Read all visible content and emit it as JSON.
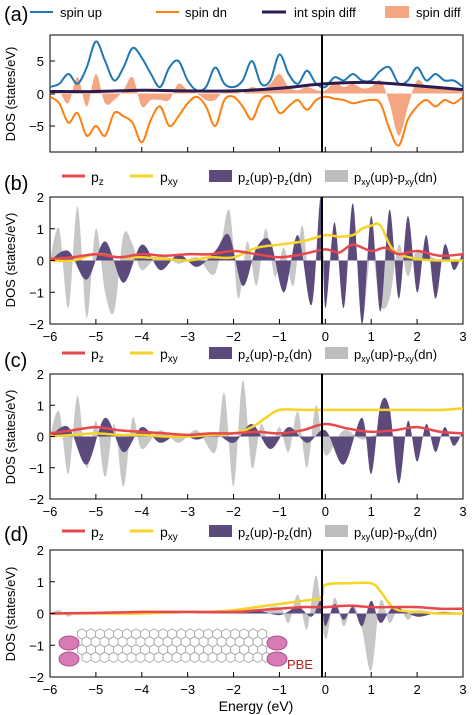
{
  "figure": {
    "xlabel": "Energy (eV)",
    "xticks": [
      "−6",
      "−5",
      "−4",
      "−3",
      "−2",
      "−1",
      "0",
      "1",
      "2",
      "3"
    ],
    "ylabel": "DOS (states/eV)"
  },
  "colors": {
    "spin_up": "#1f77b4",
    "spin_dn": "#ff7f0e",
    "int_spin_diff": "#2b1b4e",
    "spin_diff_fill": "#f4a582",
    "pz": "#e8474c",
    "pxy": "#f5d327",
    "pz_diff": "#5b4a7b",
    "pxy_diff": "#bdbdbd",
    "fermi": "#000000",
    "pbe_label": "#b22222"
  },
  "chart_data": [
    {
      "type": "area",
      "panel_label": "(a)",
      "legend": [
        "spin up",
        "spin dn",
        "int spin diff",
        "spin diff"
      ],
      "yticks": [
        "5",
        "0",
        "−5"
      ],
      "ylim": [
        -9,
        9
      ],
      "xlim": [
        -6,
        3
      ],
      "series": [
        {
          "name": "spin up",
          "x": [
            -6.0,
            -5.8,
            -5.6,
            -5.4,
            -5.2,
            -5.0,
            -4.8,
            -4.6,
            -4.4,
            -4.2,
            -4.0,
            -3.8,
            -3.6,
            -3.4,
            -3.2,
            -3.0,
            -2.8,
            -2.6,
            -2.4,
            -2.2,
            -2.0,
            -1.8,
            -1.6,
            -1.4,
            -1.2,
            -1.0,
            -0.8,
            -0.6,
            -0.4,
            -0.2,
            0.0,
            0.2,
            0.4,
            0.6,
            0.8,
            1.0,
            1.2,
            1.4,
            1.6,
            1.8,
            2.0,
            2.2,
            2.4,
            2.6,
            2.8,
            3.0
          ],
          "y": [
            1.0,
            1.5,
            3.0,
            1.5,
            4.0,
            8.0,
            5.0,
            2.0,
            4.0,
            7.0,
            5.5,
            3.0,
            1.0,
            4.0,
            5.0,
            2.0,
            0.5,
            1.0,
            4.0,
            1.5,
            1.0,
            2.0,
            5.0,
            1.5,
            2.0,
            6.0,
            3.0,
            1.5,
            3.5,
            1.5,
            1.0,
            2.5,
            2.0,
            3.0,
            2.0,
            2.0,
            3.5,
            4.0,
            1.5,
            2.0,
            4.0,
            2.0,
            3.0,
            2.0,
            2.0,
            1.0
          ]
        },
        {
          "name": "spin dn",
          "x": [
            -6.0,
            -5.8,
            -5.6,
            -5.4,
            -5.2,
            -5.0,
            -4.8,
            -4.6,
            -4.4,
            -4.2,
            -4.0,
            -3.8,
            -3.6,
            -3.4,
            -3.2,
            -3.0,
            -2.8,
            -2.6,
            -2.4,
            -2.2,
            -2.0,
            -1.8,
            -1.6,
            -1.4,
            -1.2,
            -1.0,
            -0.8,
            -0.6,
            -0.4,
            -0.2,
            0.0,
            0.2,
            0.4,
            0.6,
            0.8,
            1.0,
            1.2,
            1.4,
            1.6,
            1.8,
            2.0,
            2.2,
            2.4,
            2.6,
            2.8,
            3.0
          ],
          "y": [
            -0.5,
            -1.5,
            -4.5,
            -3.0,
            -6.5,
            -5.0,
            -6.5,
            -3.0,
            -3.5,
            -4.5,
            -7.5,
            -4.0,
            -2.0,
            -5.0,
            -3.5,
            -1.5,
            -0.5,
            -2.0,
            -5.0,
            -1.0,
            -0.5,
            -2.0,
            -4.0,
            -1.0,
            -0.5,
            -3.0,
            -2.0,
            -1.0,
            -2.5,
            -1.0,
            -0.5,
            -0.8,
            -1.0,
            -1.5,
            -1.2,
            -1.0,
            -1.5,
            -5.5,
            -8.0,
            -4.0,
            -2.0,
            -1.0,
            -2.0,
            -1.0,
            -1.5,
            -0.5
          ]
        },
        {
          "name": "int spin diff",
          "x": [
            -6.0,
            -5.0,
            -4.0,
            -3.0,
            -2.0,
            -1.0,
            0.0,
            1.0,
            2.0,
            3.0
          ],
          "y": [
            0.3,
            0.3,
            0.5,
            0.4,
            0.4,
            0.8,
            1.5,
            1.7,
            1.2,
            0.6
          ]
        },
        {
          "name": "spin diff",
          "x": [
            -6.0,
            -5.8,
            -5.6,
            -5.4,
            -5.2,
            -5.0,
            -4.8,
            -4.6,
            -4.4,
            -4.2,
            -4.0,
            -3.8,
            -3.6,
            -3.4,
            -3.2,
            -3.0,
            -2.8,
            -2.6,
            -2.4,
            -2.2,
            -2.0,
            -1.8,
            -1.6,
            -1.4,
            -1.2,
            -1.0,
            -0.8,
            -0.6,
            -0.4,
            -0.2,
            0.0,
            0.2,
            0.4,
            0.6,
            0.8,
            1.0,
            1.2,
            1.4,
            1.6,
            1.8,
            2.0,
            2.2,
            2.4,
            2.6,
            2.8,
            3.0
          ],
          "y": [
            0.5,
            0.3,
            -1.5,
            2.5,
            -2.0,
            3.0,
            -1.5,
            -1.0,
            0.5,
            2.5,
            -2.0,
            -1.0,
            -1.0,
            -1.0,
            1.5,
            0.5,
            0.0,
            -1.0,
            -1.0,
            0.5,
            0.5,
            0.0,
            1.0,
            0.5,
            1.5,
            3.0,
            1.0,
            0.5,
            1.0,
            0.5,
            0.5,
            1.7,
            1.0,
            1.5,
            0.8,
            1.0,
            2.0,
            -1.5,
            -6.5,
            -2.0,
            2.0,
            1.0,
            1.0,
            1.0,
            0.5,
            0.5
          ]
        }
      ]
    },
    {
      "type": "area",
      "panel_label": "(b)",
      "legend": [
        "p_z",
        "p_xy",
        "p_z(up)-p_z(dn)",
        "p_xy(up)-p_xy(dn)"
      ],
      "yticks": [
        "2",
        "1",
        "0",
        "−1",
        "−2"
      ],
      "ylim": [
        -2,
        2
      ],
      "xlim": [
        -6,
        3
      ],
      "series": [
        {
          "name": "pz",
          "x": [
            -6.0,
            -5.5,
            -5.0,
            -4.5,
            -4.0,
            -3.5,
            -3.0,
            -2.5,
            -2.0,
            -1.5,
            -1.0,
            -0.5,
            0.0,
            0.3,
            0.6,
            1.0,
            1.3,
            1.6,
            2.0,
            2.5,
            3.0
          ],
          "y": [
            0.05,
            0.1,
            0.2,
            0.1,
            0.2,
            0.15,
            0.2,
            0.2,
            0.3,
            0.2,
            0.1,
            0.2,
            0.35,
            0.25,
            0.5,
            0.3,
            0.4,
            0.2,
            0.3,
            0.15,
            0.2
          ]
        },
        {
          "name": "pxy",
          "x": [
            -6.0,
            -5.5,
            -5.0,
            -4.5,
            -4.0,
            -3.5,
            -3.0,
            -2.5,
            -2.0,
            -1.5,
            -1.0,
            -0.5,
            0.0,
            0.3,
            0.6,
            0.8,
            1.0,
            1.2,
            1.5,
            2.0,
            2.5,
            3.0
          ],
          "y": [
            0.0,
            0.0,
            0.2,
            0.1,
            0.1,
            0.05,
            0.0,
            0.1,
            0.1,
            0.4,
            0.5,
            0.6,
            0.8,
            0.75,
            0.8,
            1.0,
            1.1,
            1.1,
            0.3,
            0.05,
            0.0,
            0.0
          ]
        },
        {
          "name": "pz_diff",
          "x": [
            -6.0,
            -5.6,
            -5.2,
            -4.8,
            -4.4,
            -4.0,
            -3.6,
            -3.2,
            -2.8,
            -2.4,
            -2.1,
            -1.8,
            -1.5,
            -1.2,
            -0.9,
            -0.6,
            -0.3,
            -0.1,
            0.0,
            0.2,
            0.4,
            0.6,
            0.8,
            1.0,
            1.2,
            1.4,
            1.6,
            1.8,
            2.0,
            2.2,
            2.4,
            2.6,
            2.8,
            3.0
          ],
          "y": [
            0.0,
            0.3,
            -0.6,
            0.6,
            -0.7,
            0.5,
            -0.3,
            0.2,
            -0.2,
            0.3,
            0.8,
            -0.8,
            0.4,
            0.6,
            -1.0,
            0.8,
            -1.4,
            2.0,
            -1.5,
            1.2,
            -1.5,
            1.8,
            -2.0,
            1.4,
            -1.6,
            1.6,
            -1.2,
            1.4,
            -1.0,
            0.8,
            -1.2,
            0.5,
            -0.3,
            0.3
          ]
        },
        {
          "name": "pxy_diff",
          "x": [
            -6.0,
            -5.8,
            -5.6,
            -5.4,
            -5.2,
            -5.0,
            -4.8,
            -4.6,
            -4.4,
            -4.2,
            -4.0,
            -3.6,
            -3.2,
            -2.8,
            -2.4,
            -2.1,
            -1.9,
            -1.7,
            -1.5,
            -1.3,
            -1.1,
            -0.9,
            -0.7,
            -0.5,
            -0.3,
            -0.1,
            0.0,
            0.2,
            0.4,
            0.6,
            0.8,
            1.0,
            1.2,
            1.4,
            1.6,
            1.8,
            2.0,
            2.5,
            3.0
          ],
          "y": [
            0.0,
            1.0,
            -1.5,
            1.7,
            -1.8,
            1.0,
            -1.0,
            -1.6,
            0.8,
            0.5,
            -0.3,
            0.2,
            -0.1,
            0.1,
            -0.4,
            1.6,
            -1.2,
            0.6,
            -0.8,
            1.0,
            -0.5,
            0.4,
            -0.8,
            1.1,
            -1.2,
            1.8,
            -0.6,
            0.6,
            -0.8,
            1.3,
            -1.9,
            0.3,
            -1.4,
            -1.2,
            0.5,
            -0.5,
            0.3,
            0.0,
            0.0
          ]
        }
      ]
    },
    {
      "type": "area",
      "panel_label": "(c)",
      "legend": [
        "p_z",
        "p_xy",
        "p_z(up)-p_z(dn)",
        "p_xy(up)-p_xy(dn)"
      ],
      "yticks": [
        "2",
        "1",
        "0",
        "−1",
        "−2"
      ],
      "ylim": [
        -2,
        2
      ],
      "xlim": [
        -6,
        3
      ],
      "series": [
        {
          "name": "pz",
          "x": [
            -6.0,
            -5.5,
            -5.0,
            -4.5,
            -4.0,
            -3.5,
            -3.0,
            -2.5,
            -2.0,
            -1.5,
            -1.0,
            -0.5,
            0.0,
            0.5,
            1.0,
            1.5,
            2.0,
            2.5,
            3.0
          ],
          "y": [
            0.1,
            0.2,
            0.3,
            0.2,
            0.15,
            0.1,
            0.05,
            0.1,
            0.1,
            0.15,
            0.1,
            0.2,
            0.4,
            0.25,
            0.15,
            0.2,
            0.3,
            0.15,
            0.1
          ]
        },
        {
          "name": "pxy",
          "x": [
            -6.0,
            -5.5,
            -5.0,
            -4.5,
            -4.0,
            -3.5,
            -3.0,
            -2.5,
            -2.0,
            -1.6,
            -1.3,
            -1.0,
            -0.5,
            0.0,
            0.5,
            1.0,
            1.5,
            2.0,
            2.5,
            3.0
          ],
          "y": [
            0.0,
            0.05,
            0.1,
            0.05,
            0.05,
            0.0,
            0.0,
            0.05,
            0.1,
            0.3,
            0.6,
            0.85,
            0.85,
            0.85,
            0.85,
            0.85,
            0.85,
            0.85,
            0.85,
            0.9
          ]
        },
        {
          "name": "pz_diff",
          "x": [
            -6.0,
            -5.6,
            -5.2,
            -4.8,
            -4.4,
            -4.0,
            -3.6,
            -3.2,
            -2.8,
            -2.4,
            -2.0,
            -1.6,
            -1.2,
            -0.8,
            -0.4,
            0.0,
            0.4,
            0.8,
            1.0,
            1.2,
            1.4,
            1.6,
            1.8,
            2.0,
            2.2,
            2.4,
            2.6,
            2.8,
            3.0
          ],
          "y": [
            0.0,
            0.3,
            -0.9,
            0.6,
            -0.5,
            0.3,
            -0.2,
            0.1,
            -0.1,
            0.1,
            -0.2,
            0.4,
            -0.4,
            0.3,
            -0.2,
            0.2,
            -0.9,
            0.6,
            -1.2,
            1.0,
            0.9,
            -1.5,
            0.5,
            -0.8,
            0.4,
            -0.5,
            0.3,
            -0.3,
            0.2
          ]
        },
        {
          "name": "pxy_diff",
          "x": [
            -6.0,
            -5.8,
            -5.6,
            -5.4,
            -5.2,
            -5.0,
            -4.8,
            -4.6,
            -4.4,
            -4.2,
            -4.0,
            -3.6,
            -3.2,
            -2.8,
            -2.4,
            -2.2,
            -2.0,
            -1.8,
            -1.6,
            -1.4,
            -1.2,
            -1.0,
            -0.8,
            -0.6,
            -0.4,
            -0.2,
            0.0,
            0.4,
            0.8,
            1.2,
            1.6,
            2.0,
            2.5,
            3.0
          ],
          "y": [
            0.0,
            0.8,
            -1.2,
            1.3,
            -1.0,
            0.5,
            -1.3,
            0.4,
            -1.6,
            0.6,
            -0.4,
            0.2,
            -0.2,
            0.2,
            -0.5,
            1.4,
            -1.6,
            1.8,
            -1.0,
            0.4,
            -0.4,
            0.3,
            -0.5,
            0.8,
            -1.0,
            1.0,
            -0.6,
            0.2,
            -0.1,
            0.1,
            0.0,
            0.0,
            0.0,
            0.0
          ]
        }
      ]
    },
    {
      "type": "area",
      "panel_label": "(d)",
      "legend": [
        "p_z",
        "p_xy",
        "p_z(up)-p_z(dn)",
        "p_xy(up)-p_xy(dn)"
      ],
      "yticks": [
        "2",
        "1",
        "0",
        "−1",
        "−2"
      ],
      "ylim": [
        -2,
        2
      ],
      "xlim": [
        -6,
        3
      ],
      "annotation": "PBE",
      "series": [
        {
          "name": "pz",
          "x": [
            -6.0,
            -5.0,
            -4.0,
            -3.0,
            -2.0,
            -1.5,
            -1.0,
            -0.5,
            0.0,
            0.5,
            1.0,
            1.5,
            2.0,
            2.5,
            3.0
          ],
          "y": [
            0.0,
            0.02,
            0.05,
            0.05,
            0.05,
            0.1,
            0.15,
            0.2,
            0.2,
            0.25,
            0.2,
            0.2,
            0.2,
            0.15,
            0.15
          ]
        },
        {
          "name": "pxy",
          "x": [
            -6.0,
            -5.0,
            -4.0,
            -3.0,
            -2.5,
            -2.0,
            -1.5,
            -1.0,
            -0.5,
            -0.1,
            0.0,
            0.5,
            1.0,
            1.2,
            1.4,
            1.6,
            2.0,
            2.5,
            3.0
          ],
          "y": [
            0.0,
            0.0,
            0.0,
            0.05,
            0.05,
            0.1,
            0.2,
            0.3,
            0.4,
            0.5,
            0.9,
            0.95,
            0.95,
            0.7,
            0.3,
            0.1,
            0.05,
            0.0,
            0.0
          ]
        },
        {
          "name": "pz_diff",
          "x": [
            -6.0,
            -5.0,
            -4.0,
            -3.0,
            -2.0,
            -1.5,
            -1.0,
            -0.6,
            -0.3,
            -0.1,
            0.0,
            0.2,
            0.4,
            0.6,
            0.8,
            1.0,
            1.2,
            1.5,
            2.0,
            2.5,
            3.0
          ],
          "y": [
            0.0,
            0.0,
            0.0,
            0.0,
            0.05,
            0.1,
            -0.05,
            0.2,
            -0.1,
            0.4,
            -0.4,
            0.3,
            -0.2,
            0.2,
            -0.4,
            0.4,
            -0.3,
            0.2,
            -0.1,
            0.05,
            0.0
          ]
        },
        {
          "name": "pxy_diff",
          "x": [
            -6.0,
            -5.8,
            -5.6,
            -5.4,
            -5.0,
            -4.0,
            -3.0,
            -2.0,
            -1.5,
            -1.0,
            -0.8,
            -0.6,
            -0.4,
            -0.2,
            0.0,
            0.2,
            0.4,
            0.6,
            0.8,
            1.0,
            1.2,
            1.4,
            1.6,
            1.8,
            2.0,
            2.5,
            3.0
          ],
          "y": [
            0.0,
            0.1,
            -0.1,
            0.05,
            0.0,
            0.0,
            0.0,
            0.05,
            0.1,
            0.2,
            -0.3,
            0.6,
            -0.5,
            1.2,
            -0.8,
            0.5,
            -0.4,
            0.3,
            -0.5,
            -1.8,
            0.4,
            -0.3,
            0.2,
            -0.2,
            0.1,
            0.0,
            0.0
          ]
        }
      ]
    }
  ]
}
